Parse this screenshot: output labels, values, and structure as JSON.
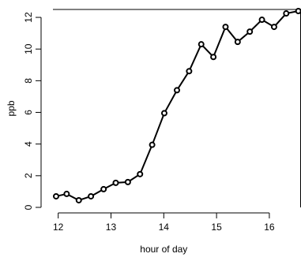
{
  "chart_data": {
    "type": "line",
    "xlabel": "hour of day",
    "ylabel": "ppb",
    "xlim": [
      11.9,
      16.6
    ],
    "ylim": [
      0,
      12.5
    ],
    "xticks": [
      12,
      13,
      14,
      15,
      16
    ],
    "yticks": [
      0,
      2,
      4,
      6,
      8,
      10,
      12
    ],
    "grid": false,
    "series": [
      {
        "x": [
          11.96,
          12.16,
          12.39,
          12.62,
          12.86,
          13.09,
          13.32,
          13.55,
          13.78,
          14.01,
          14.25,
          14.48,
          14.71,
          14.94,
          15.17,
          15.4,
          15.63,
          15.86,
          16.09,
          16.32,
          16.55
        ],
        "y": [
          0.7,
          0.85,
          0.45,
          0.7,
          1.15,
          1.55,
          1.6,
          2.1,
          3.95,
          5.95,
          7.4,
          8.6,
          10.3,
          9.5,
          11.4,
          10.45,
          11.1,
          11.85,
          11.4,
          12.25,
          12.4
        ]
      }
    ]
  }
}
